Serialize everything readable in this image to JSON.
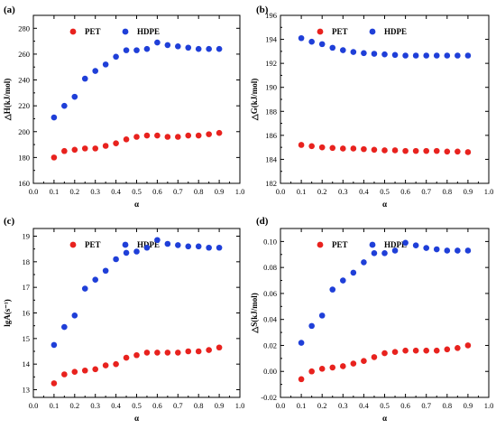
{
  "colors": {
    "PET": "#e8221e",
    "HDPE": "#1f3fd8"
  },
  "chart_data": [
    {
      "type": "scatter",
      "panel_label": "(a)",
      "xlabel": "α",
      "ylabel": "△H(kJ/mol)",
      "xlim": [
        0.0,
        1.0
      ],
      "ylim": [
        160,
        290
      ],
      "xticks": [
        "0.0",
        "0.1",
        "0.2",
        "0.3",
        "0.4",
        "0.5",
        "0.6",
        "0.7",
        "0.8",
        "0.9",
        "1.0"
      ],
      "yticks": [
        "160",
        "180",
        "200",
        "220",
        "240",
        "260",
        "280"
      ],
      "ytick_values": [
        160,
        180,
        200,
        220,
        240,
        260,
        280
      ],
      "legend": "top",
      "x": [
        0.1,
        0.15,
        0.2,
        0.25,
        0.3,
        0.35,
        0.4,
        0.45,
        0.5,
        0.55,
        0.6,
        0.65,
        0.7,
        0.75,
        0.8,
        0.85,
        0.9
      ],
      "series": [
        {
          "name": "PET",
          "values": [
            180,
            185,
            186,
            187,
            187,
            189,
            191,
            194,
            196,
            197,
            197,
            196,
            196,
            197,
            197,
            198,
            199
          ]
        },
        {
          "name": "HDPE",
          "values": [
            211,
            220,
            227,
            241,
            247,
            252,
            258,
            263,
            263,
            264,
            269,
            267,
            266,
            265,
            264,
            264,
            264
          ]
        }
      ]
    },
    {
      "type": "scatter",
      "panel_label": "(b)",
      "xlabel": "α",
      "ylabel": "△G(kJ/mol)",
      "xlim": [
        0.0,
        1.0
      ],
      "ylim": [
        182,
        196
      ],
      "xticks": [
        "0.0",
        "0.1",
        "0.2",
        "0.3",
        "0.4",
        "0.5",
        "0.6",
        "0.7",
        "0.8",
        "0.9",
        "1.0"
      ],
      "yticks": [
        "182",
        "184",
        "186",
        "188",
        "190",
        "192",
        "194",
        "196"
      ],
      "ytick_values": [
        182,
        184,
        186,
        188,
        190,
        192,
        194,
        196
      ],
      "legend": "top",
      "x": [
        0.1,
        0.15,
        0.2,
        0.25,
        0.3,
        0.35,
        0.4,
        0.45,
        0.5,
        0.55,
        0.6,
        0.65,
        0.7,
        0.75,
        0.8,
        0.85,
        0.9
      ],
      "series": [
        {
          "name": "PET",
          "values": [
            185.2,
            185.1,
            185.0,
            184.95,
            184.9,
            184.9,
            184.85,
            184.8,
            184.75,
            184.75,
            184.7,
            184.7,
            184.7,
            184.7,
            184.65,
            184.65,
            184.6
          ]
        },
        {
          "name": "HDPE",
          "values": [
            194.1,
            193.8,
            193.6,
            193.3,
            193.1,
            192.95,
            192.85,
            192.8,
            192.75,
            192.7,
            192.65,
            192.65,
            192.65,
            192.65,
            192.65,
            192.65,
            192.65
          ]
        }
      ]
    },
    {
      "type": "scatter",
      "panel_label": "(c)",
      "xlabel": "α",
      "ylabel": "lgA(s⁻¹)",
      "xlim": [
        0.0,
        1.0
      ],
      "ylim": [
        12.7,
        19.3
      ],
      "xticks": [
        "0.0",
        "0.1",
        "0.2",
        "0.3",
        "0.4",
        "0.5",
        "0.6",
        "0.7",
        "0.8",
        "0.9",
        "1.0"
      ],
      "yticks": [
        "13",
        "14",
        "15",
        "16",
        "17",
        "18",
        "19"
      ],
      "ytick_values": [
        13,
        14,
        15,
        16,
        17,
        18,
        19
      ],
      "legend": "top",
      "x": [
        0.1,
        0.15,
        0.2,
        0.25,
        0.3,
        0.35,
        0.4,
        0.45,
        0.5,
        0.55,
        0.6,
        0.65,
        0.7,
        0.75,
        0.8,
        0.85,
        0.9
      ],
      "series": [
        {
          "name": "PET",
          "values": [
            13.25,
            13.6,
            13.7,
            13.75,
            13.8,
            13.95,
            14.0,
            14.25,
            14.35,
            14.45,
            14.45,
            14.45,
            14.45,
            14.5,
            14.5,
            14.55,
            14.65
          ]
        },
        {
          "name": "HDPE",
          "values": [
            14.75,
            15.45,
            15.9,
            16.95,
            17.3,
            17.65,
            18.1,
            18.35,
            18.4,
            18.55,
            18.85,
            18.7,
            18.65,
            18.6,
            18.6,
            18.55,
            18.55
          ]
        }
      ]
    },
    {
      "type": "scatter",
      "panel_label": "(d)",
      "xlabel": "α",
      "ylabel": "△S(kJ/mol)",
      "xlim": [
        0.0,
        1.0
      ],
      "ylim": [
        -0.02,
        0.11
      ],
      "xticks": [
        "0.0",
        "0.1",
        "0.2",
        "0.3",
        "0.4",
        "0.5",
        "0.6",
        "0.7",
        "0.8",
        "0.9",
        "1.0"
      ],
      "yticks": [
        "-0.02",
        "0.00",
        "0.02",
        "0.04",
        "0.06",
        "0.08",
        "0.10"
      ],
      "ytick_values": [
        -0.02,
        0.0,
        0.02,
        0.04,
        0.06,
        0.08,
        0.1
      ],
      "legend": "top",
      "x": [
        0.1,
        0.15,
        0.2,
        0.25,
        0.3,
        0.35,
        0.4,
        0.45,
        0.5,
        0.55,
        0.6,
        0.65,
        0.7,
        0.75,
        0.8,
        0.85,
        0.9
      ],
      "series": [
        {
          "name": "PET",
          "values": [
            -0.006,
            0.0,
            0.002,
            0.003,
            0.004,
            0.006,
            0.008,
            0.011,
            0.014,
            0.015,
            0.016,
            0.016,
            0.016,
            0.016,
            0.017,
            0.018,
            0.02
          ]
        },
        {
          "name": "HDPE",
          "values": [
            0.022,
            0.035,
            0.043,
            0.063,
            0.07,
            0.076,
            0.084,
            0.091,
            0.091,
            0.093,
            0.099,
            0.097,
            0.095,
            0.094,
            0.093,
            0.093,
            0.093
          ]
        }
      ]
    }
  ]
}
